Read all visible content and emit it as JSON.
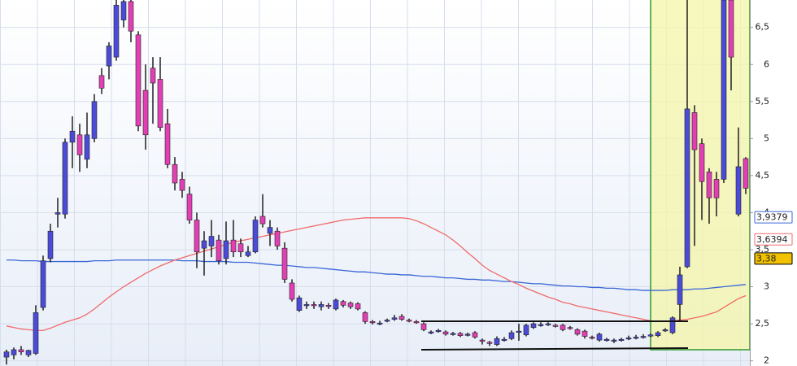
{
  "chart_data": {
    "type": "candlestick",
    "categories": [
      null,
      null,
      null,
      null,
      null,
      null,
      null,
      null,
      null,
      null,
      null,
      null,
      null,
      null,
      null,
      null,
      null,
      null,
      null,
      null,
      null,
      null,
      null,
      null,
      null,
      null,
      null,
      null,
      null,
      null,
      null,
      null,
      null,
      null,
      null,
      null,
      null,
      null,
      null,
      null,
      null,
      null,
      null,
      null,
      null,
      null,
      null,
      null,
      null,
      null,
      null,
      null,
      null,
      null,
      null,
      null,
      null,
      null,
      null,
      null,
      null,
      null,
      null,
      null,
      null,
      null,
      null,
      null,
      null,
      null,
      null,
      null,
      null,
      null,
      null,
      null,
      null,
      null,
      null,
      null,
      null,
      null,
      null,
      null,
      null,
      null,
      null,
      null,
      null,
      null,
      null,
      null,
      null,
      null,
      null,
      null,
      null,
      null,
      null,
      null,
      null,
      null
    ],
    "open": [
      2.05,
      2.08,
      2.15,
      2.08,
      2.1,
      2.72,
      3.38,
      3.98,
      3.98,
      4.95,
      5.05,
      4.72,
      5.0,
      5.85,
      5.98,
      6.1,
      6.6,
      6.85,
      6.4,
      5.65,
      5.95,
      5.8,
      5.2,
      4.65,
      4.45,
      4.25,
      3.9,
      3.52,
      3.55,
      3.63,
      3.38,
      3.63,
      3.58,
      3.42,
      3.47,
      3.95,
      3.72,
      3.75,
      3.52,
      3.05,
      2.68,
      2.75,
      2.76,
      2.73,
      2.75,
      2.7,
      2.8,
      2.78,
      2.77,
      2.65,
      2.53,
      2.5,
      2.54,
      2.56,
      2.6,
      2.55,
      2.53,
      2.5,
      2.38,
      2.4,
      2.39,
      2.36,
      2.37,
      2.35,
      2.38,
      2.28,
      2.25,
      2.22,
      2.28,
      2.3,
      2.39,
      2.35,
      2.45,
      2.48,
      2.49,
      2.48,
      2.48,
      2.45,
      2.42,
      2.4,
      2.32,
      2.28,
      2.28,
      2.27,
      2.28,
      2.3,
      2.31,
      2.32,
      2.34,
      2.34,
      2.41,
      2.38,
      2.76,
      3.27,
      5.35,
      4.93,
      4.55,
      4.45,
      4.45,
      6.87,
      3.98,
      4.73
    ],
    "high": [
      2.15,
      2.18,
      2.2,
      2.15,
      2.75,
      3.42,
      3.85,
      4.2,
      5.0,
      5.3,
      5.2,
      5.35,
      5.6,
      5.95,
      6.3,
      6.87,
      6.87,
      6.87,
      6.45,
      6.0,
      6.1,
      6.1,
      5.4,
      4.75,
      4.55,
      4.35,
      4.0,
      3.75,
      3.9,
      3.7,
      3.88,
      3.9,
      3.65,
      3.55,
      3.95,
      4.25,
      3.9,
      3.8,
      3.6,
      3.1,
      2.88,
      2.8,
      2.8,
      2.8,
      2.78,
      2.84,
      2.82,
      2.8,
      2.79,
      2.67,
      2.55,
      2.54,
      2.57,
      2.62,
      2.63,
      2.57,
      2.55,
      2.52,
      2.41,
      2.43,
      2.41,
      2.39,
      2.39,
      2.38,
      2.4,
      2.3,
      2.27,
      2.33,
      2.32,
      2.41,
      2.5,
      2.5,
      2.52,
      2.52,
      2.52,
      2.5,
      2.5,
      2.47,
      2.44,
      2.42,
      2.34,
      2.38,
      2.31,
      2.3,
      2.31,
      2.34,
      2.35,
      2.36,
      2.37,
      2.4,
      2.44,
      2.6,
      3.27,
      6.87,
      5.45,
      5.0,
      4.6,
      4.55,
      6.87,
      6.87,
      5.15,
      4.75
    ],
    "low": [
      1.95,
      2.02,
      2.08,
      2.05,
      2.08,
      2.68,
      3.33,
      3.8,
      3.92,
      4.6,
      4.55,
      4.6,
      4.95,
      5.6,
      5.8,
      6.05,
      6.5,
      6.3,
      5.1,
      4.85,
      5.2,
      5.1,
      4.6,
      4.3,
      4.2,
      3.85,
      3.25,
      3.15,
      3.4,
      3.3,
      3.3,
      3.4,
      3.4,
      3.4,
      3.45,
      3.8,
      3.55,
      3.5,
      3.05,
      2.8,
      2.66,
      2.7,
      2.7,
      2.68,
      2.7,
      2.68,
      2.72,
      2.7,
      2.68,
      2.5,
      2.49,
      2.48,
      2.52,
      2.54,
      2.54,
      2.52,
      2.5,
      2.4,
      2.36,
      2.38,
      2.34,
      2.34,
      2.32,
      2.33,
      2.3,
      2.22,
      2.2,
      2.2,
      2.26,
      2.28,
      2.27,
      2.33,
      2.43,
      2.46,
      2.47,
      2.45,
      2.4,
      2.42,
      2.34,
      2.3,
      2.29,
      2.26,
      2.26,
      2.24,
      2.26,
      2.28,
      2.29,
      2.3,
      2.32,
      2.32,
      2.39,
      2.36,
      2.53,
      3.25,
      3.55,
      3.9,
      3.85,
      3.95,
      4.4,
      5.65,
      3.95,
      4.25
    ],
    "close": [
      2.12,
      2.15,
      2.12,
      2.14,
      2.65,
      3.35,
      3.75,
      4.0,
      4.95,
      5.1,
      4.78,
      5.05,
      5.5,
      5.68,
      6.25,
      6.8,
      6.85,
      6.45,
      5.17,
      5.05,
      5.75,
      5.15,
      4.65,
      4.4,
      4.3,
      3.9,
      3.47,
      3.62,
      3.68,
      3.35,
      3.62,
      3.47,
      3.47,
      3.47,
      3.9,
      3.85,
      3.8,
      3.55,
      3.1,
      2.83,
      2.85,
      2.76,
      2.75,
      2.76,
      2.74,
      2.82,
      2.75,
      2.73,
      2.7,
      2.53,
      2.52,
      2.51,
      2.55,
      2.58,
      2.56,
      2.54,
      2.52,
      2.42,
      2.39,
      2.41,
      2.36,
      2.37,
      2.34,
      2.36,
      2.32,
      2.27,
      2.24,
      2.3,
      2.29,
      2.38,
      2.4,
      2.48,
      2.5,
      2.49,
      2.5,
      2.47,
      2.42,
      2.44,
      2.36,
      2.33,
      2.31,
      2.36,
      2.29,
      2.28,
      2.29,
      2.31,
      2.32,
      2.33,
      2.35,
      2.38,
      2.42,
      2.58,
      3.16,
      5.4,
      4.85,
      4.42,
      4.2,
      4.2,
      6.87,
      6.1,
      4.62,
      4.33
    ],
    "up_color": "#4b4bd8",
    "down_color": "#e23fb4",
    "series": [
      {
        "color": "#3a66d6",
        "values": [
          3.36,
          3.36,
          3.35,
          3.35,
          3.35,
          3.34,
          3.34,
          3.34,
          3.34,
          3.34,
          3.34,
          3.34,
          3.35,
          3.35,
          3.35,
          3.36,
          3.36,
          3.36,
          3.36,
          3.36,
          3.36,
          3.36,
          3.36,
          3.36,
          3.35,
          3.35,
          3.35,
          3.34,
          3.34,
          3.34,
          3.34,
          3.33,
          3.33,
          3.33,
          3.32,
          3.31,
          3.3,
          3.29,
          3.29,
          3.28,
          3.27,
          3.26,
          3.26,
          3.25,
          3.24,
          3.23,
          3.22,
          3.21,
          3.2,
          3.2,
          3.19,
          3.18,
          3.17,
          3.17,
          3.16,
          3.16,
          3.15,
          3.14,
          3.14,
          3.13,
          3.12,
          3.12,
          3.11,
          3.1,
          3.1,
          3.09,
          3.09,
          3.08,
          3.07,
          3.07,
          3.06,
          3.05,
          3.04,
          3.04,
          3.03,
          3.02,
          3.01,
          3.01,
          3.0,
          3.0,
          2.99,
          2.99,
          2.98,
          2.98,
          2.97,
          2.96,
          2.96,
          2.95,
          2.95,
          2.95,
          2.95,
          2.96,
          2.96,
          2.96,
          2.97,
          2.97,
          2.98,
          2.99,
          3.0,
          3.01,
          3.02,
          3.03
        ]
      },
      {
        "color": "#f06a6a",
        "values": [
          2.47,
          2.45,
          2.43,
          2.42,
          2.41,
          2.41,
          2.44,
          2.48,
          2.52,
          2.55,
          2.58,
          2.63,
          2.7,
          2.78,
          2.86,
          2.93,
          3.0,
          3.06,
          3.12,
          3.18,
          3.23,
          3.28,
          3.32,
          3.36,
          3.39,
          3.42,
          3.45,
          3.48,
          3.51,
          3.54,
          3.57,
          3.6,
          3.62,
          3.64,
          3.66,
          3.68,
          3.7,
          3.72,
          3.74,
          3.76,
          3.78,
          3.8,
          3.82,
          3.84,
          3.86,
          3.88,
          3.9,
          3.91,
          3.92,
          3.93,
          3.93,
          3.93,
          3.93,
          3.93,
          3.93,
          3.92,
          3.89,
          3.85,
          3.8,
          3.75,
          3.7,
          3.63,
          3.55,
          3.46,
          3.38,
          3.29,
          3.22,
          3.17,
          3.12,
          3.07,
          3.03,
          2.98,
          2.94,
          2.9,
          2.86,
          2.83,
          2.79,
          2.77,
          2.74,
          2.72,
          2.7,
          2.68,
          2.66,
          2.64,
          2.62,
          2.6,
          2.58,
          2.56,
          2.54,
          2.53,
          2.53,
          2.54,
          2.55,
          2.56,
          2.58,
          2.6,
          2.63,
          2.66,
          2.72,
          2.78,
          2.84,
          2.88
        ]
      }
    ],
    "price_labels": [
      {
        "value": 3.9379,
        "label": "3,9379",
        "color": "#3a66d6",
        "fill": "#ffffff"
      },
      {
        "value": 3.6394,
        "label": "3,6394",
        "color": "#f06a6a",
        "fill": "#ffffff"
      },
      {
        "value": 3.38,
        "label": "3,38",
        "color": "#000000",
        "fill": "#f2c200"
      }
    ],
    "ylim": [
      1.93,
      6.87
    ],
    "yticks": [
      {
        "value": 2,
        "label": "2"
      },
      {
        "value": 2.5,
        "label": "2,5"
      },
      3,
      {
        "value": 3.5,
        "label": "3,5"
      },
      4,
      {
        "value": 4.5,
        "label": "4,5"
      },
      5,
      {
        "value": 5.5,
        "label": "5,5"
      },
      6,
      {
        "value": 6.5,
        "label": "6,5"
      }
    ],
    "grid": true
  }
}
